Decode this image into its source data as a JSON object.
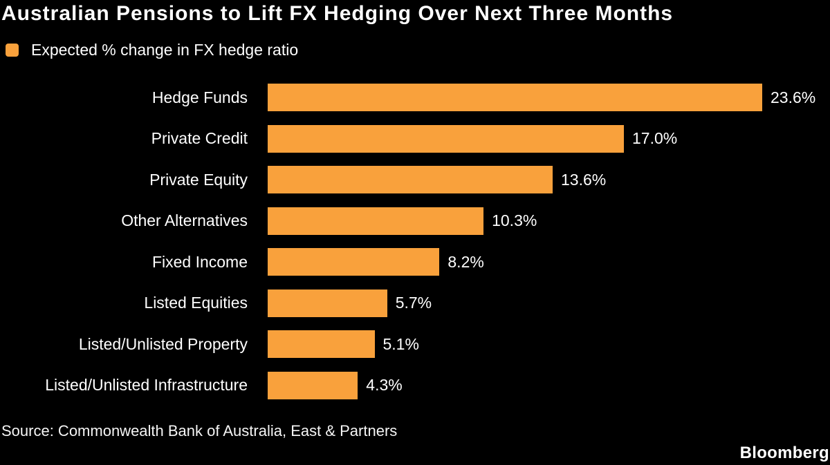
{
  "title": "Australian Pensions to Lift FX Hedging Over Next Three Months",
  "legend": {
    "label": "Expected % change in FX hedge ratio"
  },
  "chart_data": {
    "type": "bar",
    "orientation": "horizontal",
    "title": "Australian Pensions to Lift FX Hedging Over Next Three Months",
    "series_name": "Expected % change in FX hedge ratio",
    "categories": [
      "Hedge Funds",
      "Private Credit",
      "Private Equity",
      "Other Alternatives",
      "Fixed Income",
      "Listed Equities",
      "Listed/Unlisted Property",
      "Listed/Unlisted Infrastructure"
    ],
    "values": [
      23.6,
      17.0,
      13.6,
      10.3,
      8.2,
      5.7,
      5.1,
      4.3
    ],
    "value_labels": [
      "23.6%",
      "17.0%",
      "13.6%",
      "10.3%",
      "8.2%",
      "5.7%",
      "5.1%",
      "4.3%"
    ],
    "xlim": [
      0,
      23.6
    ],
    "grid": false,
    "legend_position": "top-left",
    "bar_color": "#F9A13C",
    "background_color": "#000000",
    "text_color": "#FFFFFF"
  },
  "source": "Source: Commonwealth Bank of Australia, East & Partners",
  "branding": "Bloomberg"
}
